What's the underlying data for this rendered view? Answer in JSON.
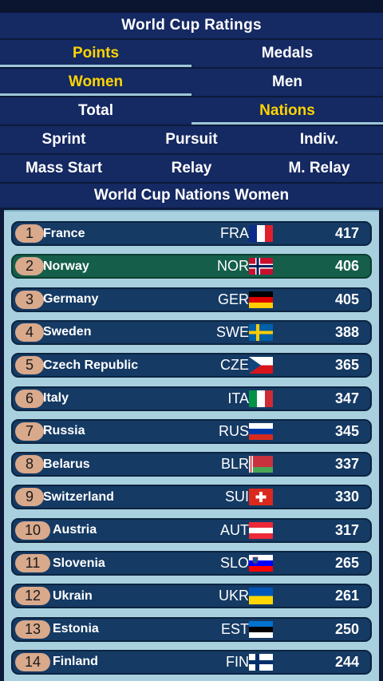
{
  "header": {
    "title": "World Cup Ratings"
  },
  "tabs": {
    "row1": [
      {
        "label": "Points",
        "active": true
      },
      {
        "label": "Medals",
        "active": false
      }
    ],
    "row2": [
      {
        "label": "Women",
        "active": true
      },
      {
        "label": "Men",
        "active": false
      }
    ],
    "row3": [
      {
        "label": "Total",
        "active": false
      },
      {
        "label": "Nations",
        "active": true
      }
    ],
    "row4": [
      {
        "label": "Sprint"
      },
      {
        "label": "Pursuit"
      },
      {
        "label": "Indiv."
      }
    ],
    "row5": [
      {
        "label": "Mass Start"
      },
      {
        "label": "Relay"
      },
      {
        "label": "M. Relay"
      }
    ]
  },
  "list_title": "World Cup Nations Women",
  "colors": {
    "accent": "#ffd400",
    "header_bg": "#152962",
    "row_bg": "#153a64",
    "highlight_bg": "#145e4a",
    "rank_badge": "#d9a98c",
    "list_bg": "#a9d0df"
  },
  "rows": [
    {
      "rank": "1",
      "name": "France",
      "code": "FRA",
      "points": "417",
      "flag": "france-flag-icon"
    },
    {
      "rank": "2",
      "name": "Norway",
      "code": "NOR",
      "points": "406",
      "flag": "norway-flag-icon",
      "highlight": true
    },
    {
      "rank": "3",
      "name": "Germany",
      "code": "GER",
      "points": "405",
      "flag": "germany-flag-icon"
    },
    {
      "rank": "4",
      "name": "Sweden",
      "code": "SWE",
      "points": "388",
      "flag": "sweden-flag-icon"
    },
    {
      "rank": "5",
      "name": "Czech Republic",
      "code": "CZE",
      "points": "365",
      "flag": "czech-flag-icon"
    },
    {
      "rank": "6",
      "name": "Italy",
      "code": "ITA",
      "points": "347",
      "flag": "italy-flag-icon"
    },
    {
      "rank": "7",
      "name": "Russia",
      "code": "RUS",
      "points": "345",
      "flag": "russia-flag-icon"
    },
    {
      "rank": "8",
      "name": "Belarus",
      "code": "BLR",
      "points": "337",
      "flag": "belarus-flag-icon"
    },
    {
      "rank": "9",
      "name": "Switzerland",
      "code": "SUI",
      "points": "330",
      "flag": "switzerland-flag-icon"
    },
    {
      "rank": "10",
      "name": "Austria",
      "code": "AUT",
      "points": "317",
      "flag": "austria-flag-icon"
    },
    {
      "rank": "11",
      "name": "Slovenia",
      "code": "SLO",
      "points": "265",
      "flag": "slovenia-flag-icon"
    },
    {
      "rank": "12",
      "name": "Ukrain",
      "code": "UKR",
      "points": "261",
      "flag": "ukraine-flag-icon"
    },
    {
      "rank": "13",
      "name": "Estonia",
      "code": "EST",
      "points": "250",
      "flag": "estonia-flag-icon"
    },
    {
      "rank": "14",
      "name": "Finland",
      "code": "FIN",
      "points": "244",
      "flag": "finland-flag-icon"
    }
  ]
}
